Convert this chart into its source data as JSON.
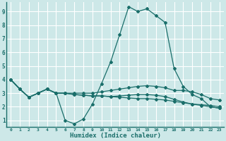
{
  "xlabel": "Humidex (Indice chaleur)",
  "background_color": "#cde8e8",
  "grid_color": "#ffffff",
  "line_color": "#1a6e6a",
  "xlim": [
    -0.5,
    23.5
  ],
  "ylim": [
    0.5,
    9.7
  ],
  "xticks": [
    0,
    1,
    2,
    3,
    4,
    5,
    6,
    7,
    8,
    9,
    10,
    11,
    12,
    13,
    14,
    15,
    16,
    17,
    18,
    19,
    20,
    21,
    22,
    23
  ],
  "yticks": [
    1,
    2,
    3,
    4,
    5,
    6,
    7,
    8,
    9
  ],
  "line1_x": [
    0,
    1,
    2,
    3,
    4,
    5,
    6,
    7,
    8,
    9,
    10,
    11,
    12,
    13,
    14,
    15,
    16,
    17,
    18,
    19,
    20,
    21,
    22,
    23
  ],
  "line1_y": [
    4.0,
    3.3,
    2.7,
    3.0,
    3.3,
    3.0,
    1.0,
    0.75,
    1.1,
    2.2,
    3.7,
    5.3,
    7.3,
    9.35,
    9.0,
    9.2,
    8.7,
    8.2,
    4.8,
    3.5,
    2.9,
    2.6,
    2.0,
    1.9
  ],
  "line2_x": [
    0,
    1,
    2,
    3,
    4,
    5,
    6,
    7,
    8,
    9,
    10,
    11,
    12,
    13,
    14,
    15,
    16,
    17,
    18,
    19,
    20,
    21,
    22,
    23
  ],
  "line2_y": [
    4.0,
    3.3,
    2.7,
    3.0,
    3.3,
    3.0,
    3.0,
    3.0,
    3.0,
    3.0,
    3.1,
    3.2,
    3.3,
    3.4,
    3.5,
    3.55,
    3.5,
    3.4,
    3.2,
    3.2,
    3.1,
    2.9,
    2.6,
    2.5
  ],
  "line3_x": [
    0,
    1,
    2,
    3,
    4,
    5,
    6,
    7,
    8,
    9,
    10,
    11,
    12,
    13,
    14,
    15,
    16,
    17,
    18,
    19,
    20,
    21,
    22,
    23
  ],
  "line3_y": [
    4.0,
    3.3,
    2.7,
    3.0,
    3.3,
    3.0,
    3.0,
    2.9,
    2.85,
    2.8,
    2.8,
    2.75,
    2.7,
    2.65,
    2.6,
    2.6,
    2.55,
    2.5,
    2.4,
    2.3,
    2.2,
    2.15,
    2.1,
    2.0
  ],
  "line4_x": [
    0,
    1,
    2,
    3,
    4,
    5,
    6,
    7,
    8,
    9,
    10,
    11,
    12,
    13,
    14,
    15,
    16,
    17,
    18,
    19,
    20,
    21,
    22,
    23
  ],
  "line4_y": [
    4.0,
    3.3,
    2.7,
    3.0,
    3.3,
    3.0,
    3.0,
    2.9,
    2.85,
    2.8,
    2.8,
    2.75,
    2.8,
    2.85,
    2.9,
    2.9,
    2.85,
    2.75,
    2.55,
    2.35,
    2.2,
    2.1,
    2.0,
    1.9
  ]
}
